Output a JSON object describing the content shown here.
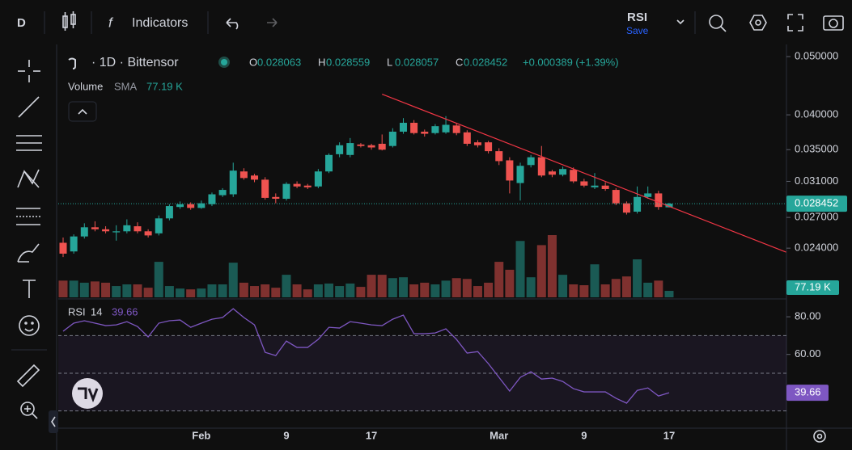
{
  "toolbar": {
    "interval": "D",
    "indicators": "Indicators",
    "study": "RSI",
    "save": "Save"
  },
  "legend": {
    "symbol": "· 1D · Bittensor",
    "ohlc_labels": [
      "O",
      "H",
      "L",
      "C"
    ],
    "change": "+0.000389 (+1.39%)",
    "sma": "SMA"
  },
  "chart_data": [
    {
      "type": "candlestick",
      "categories": [
        null,
        null,
        null,
        null,
        null,
        null,
        null,
        null,
        null,
        null,
        null,
        null,
        null,
        "Feb",
        null,
        null,
        null,
        null,
        null,
        null,
        null,
        "9",
        null,
        null,
        null,
        null,
        null,
        null,
        null,
        "17",
        null,
        null,
        null,
        null,
        null,
        null,
        null,
        null,
        null,
        null,
        null,
        "Mar",
        null,
        null,
        null,
        null,
        null,
        null,
        null,
        "9",
        null,
        null,
        null,
        null,
        null,
        null,
        null,
        "17"
      ],
      "open": [
        0.0245,
        0.0237,
        0.0251,
        0.026,
        0.0258,
        0.0255,
        0.0256,
        0.0261,
        0.0256,
        0.0254,
        0.0269,
        0.0281,
        0.0284,
        0.028,
        0.0284,
        0.0294,
        0.0295,
        0.0322,
        0.0317,
        0.0312,
        0.0292,
        0.029,
        0.0307,
        0.0305,
        0.0304,
        0.0322,
        0.0344,
        0.0343,
        0.0357,
        0.0356,
        0.0358,
        0.0355,
        0.0375,
        0.0388,
        0.0375,
        0.0373,
        0.0374,
        0.0384,
        0.0374,
        0.036,
        0.036,
        0.0348,
        0.0336,
        0.0308,
        0.033,
        0.034,
        0.0322,
        0.0318,
        0.0324,
        0.031,
        0.0303,
        0.0305,
        0.03,
        0.0285,
        0.0276,
        0.0292,
        0.0296,
        0.028063
      ],
      "high": [
        0.025,
        0.0253,
        0.0264,
        0.0266,
        0.0261,
        0.0262,
        0.0268,
        0.0265,
        0.0258,
        0.0272,
        0.0284,
        0.0287,
        0.0286,
        0.0288,
        0.0297,
        0.0302,
        0.0333,
        0.0326,
        0.0319,
        0.0315,
        0.0296,
        0.0309,
        0.031,
        0.0307,
        0.0325,
        0.0345,
        0.036,
        0.0366,
        0.0359,
        0.0358,
        0.0371,
        0.038,
        0.0395,
        0.0392,
        0.0378,
        0.0386,
        0.0398,
        0.0388,
        0.0377,
        0.0363,
        0.0362,
        0.0352,
        0.034,
        0.0333,
        0.0343,
        0.0355,
        0.0324,
        0.0328,
        0.0327,
        0.0313,
        0.032,
        0.0309,
        0.0302,
        0.0287,
        0.0304,
        0.0304,
        0.0299,
        0.028559
      ],
      "low": [
        0.0232,
        0.0235,
        0.0249,
        0.0256,
        0.0254,
        0.0247,
        0.0254,
        0.0254,
        0.025,
        0.0252,
        0.0267,
        0.0279,
        0.0278,
        0.0279,
        0.0282,
        0.0292,
        0.0292,
        0.0312,
        0.0309,
        0.0289,
        0.0285,
        0.0288,
        0.0302,
        0.0301,
        0.0302,
        0.032,
        0.034,
        0.034,
        0.0353,
        0.035,
        0.0349,
        0.0353,
        0.0372,
        0.0371,
        0.0368,
        0.0371,
        0.0372,
        0.037,
        0.0355,
        0.0353,
        0.0345,
        0.033,
        0.0296,
        0.0288,
        0.0327,
        0.0315,
        0.0315,
        0.0316,
        0.0308,
        0.0303,
        0.0301,
        0.0299,
        0.0283,
        0.0273,
        0.0274,
        0.029,
        0.0278,
        0.028057
      ],
      "close": [
        0.0235,
        0.0251,
        0.026,
        0.0258,
        0.0256,
        0.0256,
        0.0262,
        0.0256,
        0.0252,
        0.0269,
        0.0282,
        0.0284,
        0.028,
        0.0285,
        0.0295,
        0.03,
        0.0323,
        0.0314,
        0.0312,
        0.0291,
        0.029,
        0.0307,
        0.0304,
        0.0303,
        0.0322,
        0.0343,
        0.0356,
        0.0359,
        0.0355,
        0.0353,
        0.035,
        0.0375,
        0.0388,
        0.0373,
        0.0372,
        0.0383,
        0.0385,
        0.0373,
        0.0358,
        0.0356,
        0.0348,
        0.0335,
        0.0311,
        0.0329,
        0.034,
        0.0317,
        0.0318,
        0.0325,
        0.031,
        0.0305,
        0.0305,
        0.0301,
        0.0285,
        0.0275,
        0.0292,
        0.0296,
        0.0281,
        0.028452
      ],
      "up_color": "#26a69a",
      "down_color": "#ef5350",
      "log_scale": true,
      "grid": false,
      "ylim": [
        0.01988,
        0.0519
      ],
      "yticks": [
        {
          "value": 0.05,
          "label": "0.050000"
        },
        {
          "value": 0.04,
          "label": "0.040000"
        },
        {
          "value": 0.035,
          "label": "0.035000"
        },
        {
          "value": 0.031,
          "label": "0.031000"
        },
        {
          "value": 0.027,
          "label": "0.027000"
        },
        {
          "value": 0.024,
          "label": "0.024000"
        }
      ],
      "volume": {
        "name": "Volume",
        "label": "77.19 K",
        "ylim": [
          0,
          3000
        ],
        "values": [
          200,
          200,
          175,
          190,
          175,
          135,
          155,
          155,
          115,
          425,
          135,
          105,
          95,
          105,
          155,
          155,
          415,
          175,
          135,
          155,
          115,
          270,
          155,
          95,
          155,
          165,
          135,
          165,
          125,
          270,
          270,
          230,
          240,
          155,
          175,
          155,
          200,
          230,
          220,
          135,
          175,
          425,
          330,
          675,
          240,
          625,
          745,
          270,
          155,
          145,
          395,
          155,
          220,
          250,
          455,
          175,
          200,
          77.19
        ]
      },
      "trendline": {
        "x": [
          30,
          68
        ],
        "y": [
          0.0433,
          0.02364
        ],
        "color": "#f23645"
      }
    },
    {
      "type": "line",
      "title": "RSI",
      "period": 14,
      "ylim": [
        20.8,
        88.2
      ],
      "yticks": [
        {
          "value": 80,
          "label": "80.00"
        },
        {
          "value": 60,
          "label": "60.00"
        }
      ],
      "bands": [
        30,
        50,
        70
      ],
      "band_color": "#7e57c2",
      "series": [
        {
          "name": "RSI",
          "color": "#7e57c2",
          "values": [
            72.3,
            76.6,
            77.9,
            76.6,
            75.3,
            75.7,
            77.4,
            74.8,
            69.3,
            76.6,
            77.9,
            78.3,
            74.4,
            76.6,
            78.7,
            79.6,
            84.3,
            79.6,
            75.7,
            61.1,
            59.4,
            67.1,
            63.7,
            63.7,
            68.0,
            74.4,
            74.0,
            77.4,
            76.6,
            75.7,
            75.3,
            78.7,
            80.9,
            71.0,
            71.0,
            71.4,
            73.6,
            68.0,
            60.7,
            61.5,
            55.1,
            47.8,
            40.5,
            47.8,
            50.8,
            46.9,
            47.4,
            45.6,
            41.8,
            40.1,
            40.1,
            40.1,
            36.7,
            34.1,
            40.9,
            42.2,
            37.9,
            39.66
          ]
        }
      ]
    }
  ]
}
